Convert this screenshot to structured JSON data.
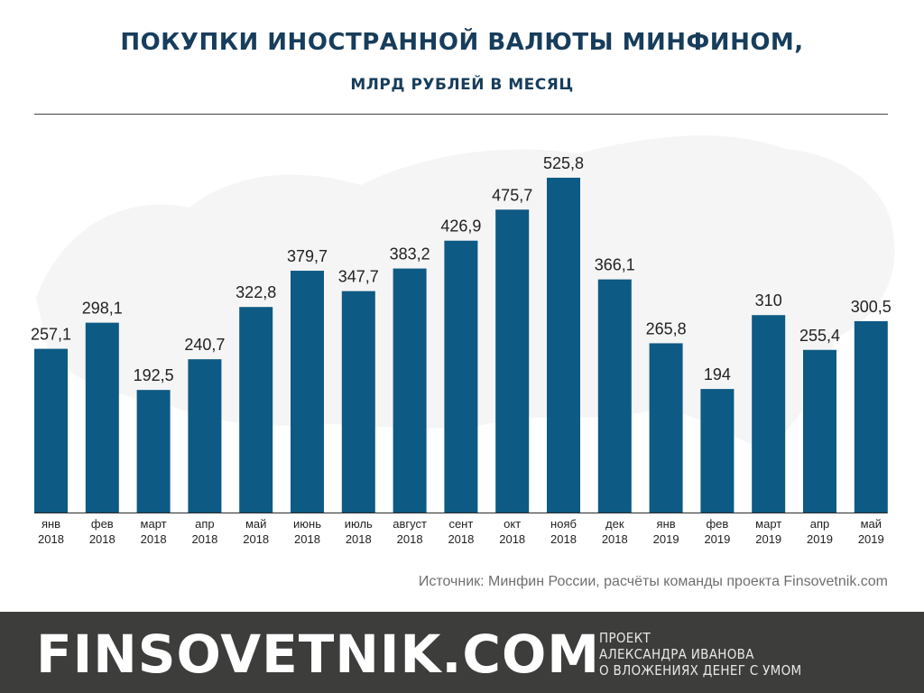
{
  "title": "ПОКУПКИ ИНОСТРАННОЙ ВАЛЮТЫ МИНФИНОМ,",
  "subtitle": "МЛРД РУБЛЕЙ В МЕСЯЦ",
  "source": "Источник: Минфин России, расчёты команды проекта Finsovetnik.com",
  "footer": {
    "brand": "FINSOVETNIK.COM",
    "tagline": [
      "ПРОЕКТ",
      "АЛЕКСАНДРА ИВАНОВА",
      "О ВЛОЖЕНИЯХ ДЕНЕГ С УМОМ"
    ]
  },
  "colors": {
    "bar": "#0d5a84",
    "title": "#173d5c",
    "footer_bg": "#3d3d3b"
  },
  "chart_data": {
    "type": "bar",
    "title": "ПОКУПКИ ИНОСТРАННОЙ ВАЛЮТЫ МИНФИНОМ,",
    "subtitle": "МЛРД РУБЛЕЙ В МЕСЯЦ",
    "xlabel": "",
    "ylabel": "",
    "ylim": [
      0,
      600
    ],
    "grid": false,
    "categories": [
      [
        "янв",
        "2018"
      ],
      [
        "фев",
        "2018"
      ],
      [
        "март",
        "2018"
      ],
      [
        "апр",
        "2018"
      ],
      [
        "май",
        "2018"
      ],
      [
        "июнь",
        "2018"
      ],
      [
        "июль",
        "2018"
      ],
      [
        "август",
        "2018"
      ],
      [
        "сент",
        "2018"
      ],
      [
        "окт",
        "2018"
      ],
      [
        "нояб",
        "2018"
      ],
      [
        "дек",
        "2018"
      ],
      [
        "янв",
        "2019"
      ],
      [
        "фев",
        "2019"
      ],
      [
        "март",
        "2019"
      ],
      [
        "апр",
        "2019"
      ],
      [
        "май",
        "2019"
      ]
    ],
    "values": [
      257.1,
      298.1,
      192.5,
      240.7,
      322.8,
      379.7,
      347.7,
      383.2,
      426.9,
      475.7,
      525.8,
      366.1,
      265.8,
      194,
      310,
      255.4,
      300.5
    ],
    "labels": [
      "257,1",
      "298,1",
      "192,5",
      "240,7",
      "322,8",
      "379,7",
      "347,7",
      "383,2",
      "426,9",
      "475,7",
      "525,8",
      "366,1",
      "265,8",
      "194",
      "310",
      "255,4",
      "300,5"
    ]
  }
}
